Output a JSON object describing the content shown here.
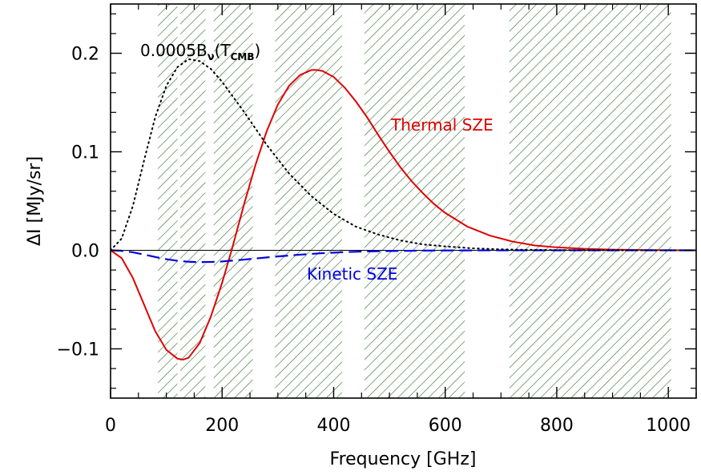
{
  "chart_data": {
    "type": "line",
    "xlabel": "Frequency [GHz]",
    "ylabel": "ΔI [MJy/sr]",
    "xlim": [
      0,
      1050
    ],
    "ylim": [
      -0.15,
      0.25
    ],
    "x_ticks": [
      0,
      200,
      400,
      600,
      800,
      1000
    ],
    "x_tick_labels": [
      "0",
      "200",
      "400",
      "600",
      "800",
      "1000"
    ],
    "y_ticks": [
      -0.1,
      0.0,
      0.1,
      0.2
    ],
    "y_tick_labels": [
      "−0.1",
      "0.0",
      "0.1",
      "0.2"
    ],
    "grid": false,
    "zero_line": true,
    "bands": [
      {
        "x0": 85,
        "x1": 120
      },
      {
        "x0": 125,
        "x1": 170
      },
      {
        "x0": 185,
        "x1": 255
      },
      {
        "x0": 295,
        "x1": 415
      },
      {
        "x0": 455,
        "x1": 635
      },
      {
        "x0": 715,
        "x1": 1005
      }
    ],
    "band_color": "#2e6b2a",
    "series": [
      {
        "name": "Thermal SZE",
        "color": "#e00000",
        "style": "solid",
        "x": [
          0,
          20,
          40,
          60,
          80,
          100,
          120,
          130,
          140,
          160,
          180,
          200,
          217,
          240,
          260,
          280,
          300,
          320,
          340,
          360,
          370,
          380,
          400,
          420,
          440,
          460,
          480,
          500,
          520,
          540,
          560,
          580,
          600,
          640,
          680,
          720,
          760,
          800,
          850,
          900,
          950,
          1000,
          1050
        ],
        "y": [
          0.0,
          -0.008,
          -0.028,
          -0.055,
          -0.082,
          -0.101,
          -0.11,
          -0.111,
          -0.109,
          -0.094,
          -0.067,
          -0.033,
          0.0,
          0.048,
          0.087,
          0.121,
          0.148,
          0.167,
          0.178,
          0.183,
          0.183,
          0.182,
          0.176,
          0.165,
          0.151,
          0.135,
          0.117,
          0.1,
          0.084,
          0.07,
          0.058,
          0.047,
          0.038,
          0.024,
          0.015,
          0.009,
          0.005,
          0.003,
          0.0015,
          0.0007,
          0.0003,
          0.0001,
          0.0
        ]
      },
      {
        "name": "Kinetic SZE",
        "color": "#0000e0",
        "style": "dashed",
        "x": [
          0,
          20,
          40,
          60,
          80,
          100,
          120,
          140,
          160,
          180,
          200,
          220,
          240,
          260,
          280,
          300,
          340,
          380,
          420,
          460,
          500,
          560,
          620,
          700,
          800,
          900,
          1000,
          1050
        ],
        "y": [
          0.0,
          -0.0005,
          -0.002,
          -0.0043,
          -0.0068,
          -0.009,
          -0.0106,
          -0.0116,
          -0.012,
          -0.0118,
          -0.0113,
          -0.0104,
          -0.0094,
          -0.0083,
          -0.0072,
          -0.0062,
          -0.0044,
          -0.0029,
          -0.0018,
          -0.0011,
          -0.0007,
          -0.0003,
          -0.0001,
          -3e-05,
          0.0,
          0.0,
          0.0,
          0.0
        ]
      },
      {
        "name": "0.0005B_ν(T_CMB)",
        "color": "#000000",
        "style": "dotted",
        "x": [
          0,
          20,
          40,
          60,
          80,
          100,
          120,
          140,
          160,
          180,
          200,
          240,
          280,
          320,
          360,
          400,
          440,
          480,
          520,
          560,
          600,
          650,
          700,
          750,
          800,
          900,
          1000,
          1050
        ],
        "y": [
          0.0,
          0.012,
          0.045,
          0.091,
          0.135,
          0.167,
          0.186,
          0.194,
          0.192,
          0.184,
          0.171,
          0.14,
          0.107,
          0.078,
          0.055,
          0.037,
          0.024,
          0.016,
          0.01,
          0.006,
          0.004,
          0.002,
          0.001,
          0.0005,
          0.0002,
          5e-05,
          1e-05,
          0.0
        ]
      }
    ],
    "annotations": [
      {
        "text_main": "0.0005B",
        "text_sub": "ν",
        "text_paren_open": "(T",
        "text_sub2": "CMB",
        "text_paren_close": ")",
        "color": "#000000"
      },
      {
        "text": "Thermal SZE",
        "color": "#e00000"
      },
      {
        "text": "Kinetic SZE",
        "color": "#0000e0"
      }
    ]
  }
}
